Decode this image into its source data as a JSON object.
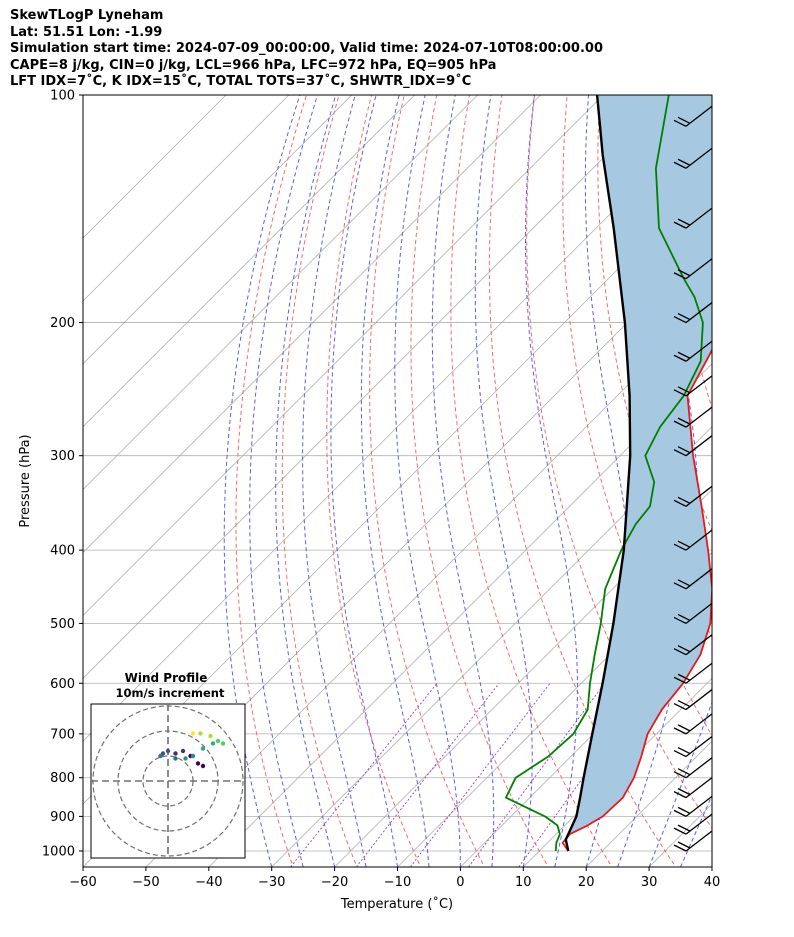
{
  "header": {
    "title": "SkewTLogP Lyneham",
    "location": "Lat: 51.51   Lon: -1.99",
    "times": "Simulation start time: 2024-07-09_00:00:00, Valid time: 2024-07-10T08:00:00.00",
    "indices1": "CAPE=8 j/kg, CIN=0 j/kg, LCL=966 hPa, LFC=972 hPa, EQ=905 hPa",
    "indices2": "LFT IDX=7˚C, K IDX=15˚C, TOTAL TOTS=37˚C, SHWTR_IDX=9˚C"
  },
  "chart_data": [
    {
      "type": "line",
      "chart": "skew-T log-P",
      "xlabel": "Temperature (˚C)",
      "ylabel": "Pressure (hPa)",
      "xlim": [
        -60,
        40
      ],
      "ylim": [
        1050,
        100
      ],
      "y_scale": "log",
      "x_ticks": [
        "−60",
        "−50",
        "−40",
        "−30",
        "−20",
        "−10",
        "0",
        "10",
        "20",
        "30",
        "40"
      ],
      "y_ticks": [
        "1000",
        "900",
        "800",
        "700",
        "600",
        "500",
        "400",
        "300",
        "200",
        "100"
      ],
      "grid": true,
      "colors": {
        "temperature": "#e41a1c",
        "dewpoint": "#008000",
        "parcel": "#000000",
        "cape_fill": "#a6c8e0",
        "dry_adiabats": "#f26b6b",
        "moist_adiabats": "#5b5bf5",
        "mixing_ratio": "#9b3fcf",
        "isotherms": "#b0b0b0"
      },
      "series": [
        {
          "role": "temperature",
          "points": [
            [
              1000,
              14.6
            ],
            [
              975,
              12.4
            ],
            [
              950,
              12.2
            ],
            [
              925,
              13.6
            ],
            [
              900,
              14.6
            ],
            [
              850,
              14.8
            ],
            [
              800,
              13.4
            ],
            [
              750,
              11.2
            ],
            [
              700,
              8.6
            ],
            [
              650,
              7.0
            ],
            [
              600,
              6.2
            ],
            [
              550,
              4.4
            ],
            [
              500,
              1.0
            ],
            [
              450,
              -4.2
            ],
            [
              400,
              -11.0
            ],
            [
              350,
              -19.0
            ],
            [
              300,
              -28.4
            ],
            [
              250,
              -38.8
            ],
            [
              200,
              -44.2
            ],
            [
              175,
              -48.8
            ],
            [
              150,
              -56.0
            ],
            [
              125,
              -60.8
            ],
            [
              100,
              -64.0
            ]
          ]
        },
        {
          "role": "dewpoint",
          "points": [
            [
              1000,
              12.6
            ],
            [
              975,
              11.4
            ],
            [
              950,
              10.6
            ],
            [
              925,
              8.8
            ],
            [
              900,
              5.4
            ],
            [
              850,
              -3.8
            ],
            [
              800,
              -5.4
            ],
            [
              750,
              -3.6
            ],
            [
              700,
              -3.2
            ],
            [
              650,
              -4.8
            ],
            [
              600,
              -8.6
            ],
            [
              550,
              -12.4
            ],
            [
              500,
              -16.4
            ],
            [
              450,
              -21.2
            ],
            [
              400,
              -24.8
            ],
            [
              370,
              -26.6
            ],
            [
              350,
              -27.2
            ],
            [
              325,
              -30.4
            ],
            [
              300,
              -36.0
            ],
            [
              275,
              -38.2
            ],
            [
              250,
              -39.4
            ],
            [
              225,
              -42.2
            ],
            [
              200,
              -48.0
            ],
            [
              185,
              -53.4
            ],
            [
              175,
              -58.0
            ],
            [
              150,
              -70.0
            ],
            [
              125,
              -80.0
            ],
            [
              100,
              -89.6
            ]
          ]
        },
        {
          "role": "parcel",
          "points": [
            [
              1000,
              14.6
            ],
            [
              966,
              12.4
            ],
            [
              900,
              10.4
            ],
            [
              850,
              8.0
            ],
            [
              800,
              5.4
            ],
            [
              700,
              -0.2
            ],
            [
              600,
              -6.6
            ],
            [
              500,
              -14.4
            ],
            [
              400,
              -24.4
            ],
            [
              300,
              -38.4
            ],
            [
              250,
              -48.0
            ],
            [
              200,
              -60.4
            ],
            [
              150,
              -77.2
            ],
            [
              120,
              -90.6
            ],
            [
              100,
              -101.0
            ]
          ]
        }
      ],
      "wind_barbs": [
        {
          "p": 1000
        },
        {
          "p": 950
        },
        {
          "p": 900
        },
        {
          "p": 850
        },
        {
          "p": 800
        },
        {
          "p": 750
        },
        {
          "p": 700
        },
        {
          "p": 650
        },
        {
          "p": 600
        },
        {
          "p": 550
        },
        {
          "p": 500
        },
        {
          "p": 450
        },
        {
          "p": 400
        },
        {
          "p": 350
        },
        {
          "p": 300
        },
        {
          "p": 275
        },
        {
          "p": 250
        },
        {
          "p": 225
        },
        {
          "p": 200
        },
        {
          "p": 175
        },
        {
          "p": 150
        },
        {
          "p": 125
        },
        {
          "p": 110
        }
      ]
    },
    {
      "type": "scatter",
      "chart": "hodograph",
      "title": "Wind Profile",
      "subtitle": "10m/s increment",
      "ring_count": 3,
      "points_uv": [
        [
          14,
          6
        ],
        [
          12,
          7
        ],
        [
          9,
          10
        ],
        [
          6,
          12
        ],
        [
          3,
          11
        ],
        [
          0,
          12
        ],
        [
          -2,
          11
        ],
        [
          -3,
          10
        ],
        [
          3,
          9
        ],
        [
          7,
          9
        ],
        [
          10,
          10
        ],
        [
          14,
          13
        ],
        [
          18,
          15
        ],
        [
          22,
          15
        ],
        [
          20,
          16
        ],
        [
          17,
          18
        ],
        [
          13,
          19
        ],
        [
          10,
          19
        ]
      ]
    }
  ]
}
